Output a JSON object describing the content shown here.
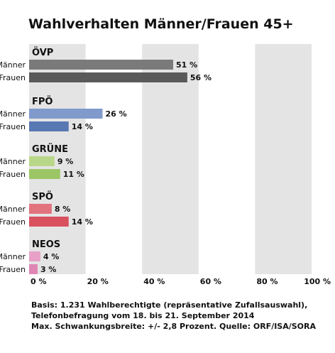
{
  "chart_data": {
    "type": "bar",
    "orientation": "horizontal",
    "title": "Wahlverhalten Männer/Frauen 45+",
    "xlim": [
      0,
      100
    ],
    "x_ticks": [
      "0 %",
      "20 %",
      "40 %",
      "60 %",
      "80 %",
      "100 %"
    ],
    "grid": "alternating vertical bands",
    "groups": [
      {
        "party": "ÖVP",
        "bars": [
          {
            "label": "Männer",
            "value": 51,
            "value_label": "51 %",
            "color": "#7a7a7a"
          },
          {
            "label": "Frauen",
            "value": 56,
            "value_label": "56 %",
            "color": "#5a5a5a"
          }
        ]
      },
      {
        "party": "FPÖ",
        "bars": [
          {
            "label": "Männer",
            "value": 26,
            "value_label": "26 %",
            "color": "#7f9acb"
          },
          {
            "label": "Frauen",
            "value": 14,
            "value_label": "14 %",
            "color": "#5878b4"
          }
        ]
      },
      {
        "party": "GRÜNE",
        "bars": [
          {
            "label": "Männer",
            "value": 9,
            "value_label": "9 %",
            "color": "#b9d789"
          },
          {
            "label": "Frauen",
            "value": 11,
            "value_label": "11 %",
            "color": "#9cc665"
          }
        ]
      },
      {
        "party": "SPÖ",
        "bars": [
          {
            "label": "Männer",
            "value": 8,
            "value_label": "8 %",
            "color": "#e2727d"
          },
          {
            "label": "Frauen",
            "value": 14,
            "value_label": "14 %",
            "color": "#d9505e"
          }
        ]
      },
      {
        "party": "NEOS",
        "bars": [
          {
            "label": "Männer",
            "value": 4,
            "value_label": "4 %",
            "color": "#e7a1c7"
          },
          {
            "label": "Frauen",
            "value": 3,
            "value_label": "3 %",
            "color": "#df86b5"
          }
        ]
      }
    ]
  },
  "footer": {
    "line1": "Basis: 1.231 Wahlberechtigte (repräsentative Zufallsauswahl),",
    "line2": "Telefonbefragung vom 18. bis 21. September 2014",
    "line3": "Max. Schwankungsbreite: +/- 2,8 Prozent. Quelle: ORF/ISA/SORA"
  },
  "colors": {
    "band": "#e4e4e4",
    "text": "#111111"
  }
}
